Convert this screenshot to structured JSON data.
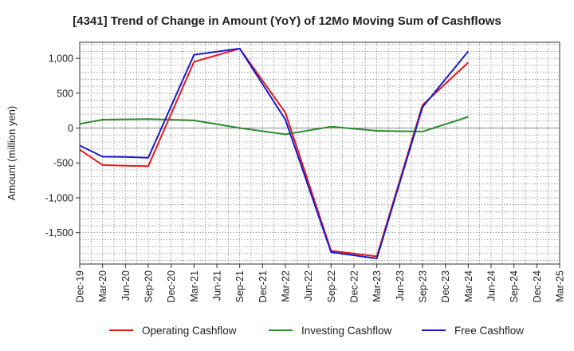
{
  "chart_data": {
    "type": "line",
    "title": "[4341]  Trend of Change in Amount (YoY) of 12Mo Moving Sum of Cashflows",
    "xlabel": "",
    "ylabel": "Amount (million yen)",
    "ylim": [
      -1950,
      1230
    ],
    "y_ticks": [
      1000,
      500,
      0,
      -500,
      -1000,
      -1500
    ],
    "y_tick_labels": [
      "1,000",
      "500",
      "0",
      "-500",
      "-1,000",
      "-1,500"
    ],
    "categories": [
      "Dec-19",
      "Mar-20",
      "Jun-20",
      "Sep-20",
      "Dec-20",
      "Mar-21",
      "Jun-21",
      "Sep-21",
      "Dec-21",
      "Mar-22",
      "Jun-22",
      "Sep-22",
      "Dec-22",
      "Mar-23",
      "Jun-23",
      "Sep-23",
      "Dec-23",
      "Mar-24",
      "Jun-24",
      "Sep-24",
      "Dec-24",
      "Mar-25"
    ],
    "grid": true,
    "legend_position": "bottom",
    "series": [
      {
        "name": "Operating Cashflow",
        "color": "#e31a1c",
        "values": [
          -310,
          -530,
          -540,
          -545,
          null,
          950,
          null,
          1140,
          null,
          220,
          null,
          -1760,
          null,
          -1840,
          null,
          330,
          null,
          940,
          null,
          null,
          null,
          null
        ]
      },
      {
        "name": "Investing Cashflow",
        "color": "#2e8b2e",
        "values": [
          60,
          120,
          null,
          130,
          null,
          110,
          null,
          0,
          null,
          -90,
          null,
          20,
          null,
          -40,
          null,
          -50,
          null,
          160,
          null,
          null,
          null,
          null
        ]
      },
      {
        "name": "Free Cashflow",
        "color": "#1a1acc",
        "values": [
          -250,
          -410,
          -415,
          -425,
          null,
          1050,
          null,
          1140,
          null,
          120,
          null,
          -1780,
          null,
          -1870,
          null,
          300,
          null,
          1100,
          null,
          null,
          null,
          null
        ]
      }
    ]
  }
}
